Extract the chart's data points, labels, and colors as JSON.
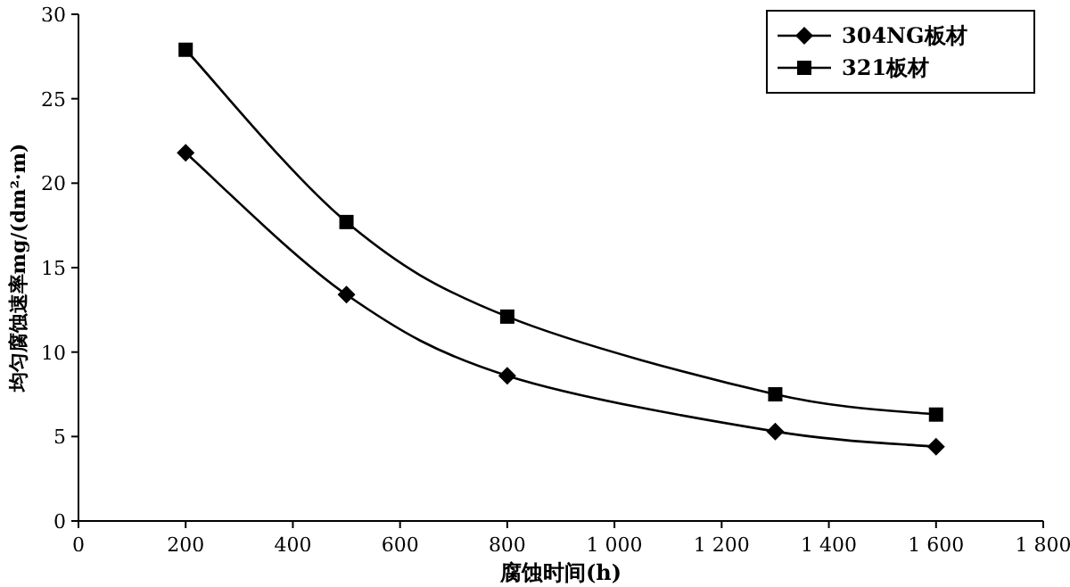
{
  "chart_data": {
    "type": "line",
    "xlabel": "腐蚀时间(h)",
    "ylabel": "均匀腐蚀速率mg/(dm²·m)",
    "x": [
      200,
      500,
      800,
      1300,
      1600
    ],
    "series": [
      {
        "name": "304NG板材",
        "color": "#000000",
        "marker": "diamond",
        "values": [
          21.8,
          13.4,
          8.6,
          5.3,
          4.4
        ]
      },
      {
        "name": "321板材",
        "color": "#000000",
        "marker": "square",
        "values": [
          27.9,
          17.7,
          12.1,
          7.5,
          6.3
        ]
      }
    ],
    "xlim": [
      0,
      1800
    ],
    "ylim": [
      0,
      30
    ],
    "xticks": [
      0,
      200,
      400,
      600,
      800,
      {
        "value": 1000,
        "label": "1 000"
      },
      {
        "value": 1200,
        "label": "1 200"
      },
      {
        "value": 1400,
        "label": "1 400"
      },
      {
        "value": 1600,
        "label": "1 600"
      },
      {
        "value": 1800,
        "label": "1 800"
      }
    ],
    "yticks": [
      0,
      5,
      10,
      15,
      20,
      25,
      30
    ],
    "legend": "top right"
  }
}
